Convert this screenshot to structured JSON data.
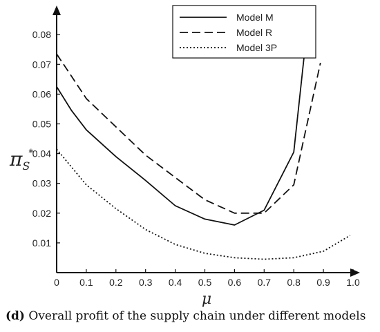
{
  "chart_data": {
    "type": "line",
    "xlabel": "μ",
    "ylabel_main": "π",
    "ylabel_sub": "S",
    "ylabel_sup": "*",
    "xlim": [
      0,
      1.0
    ],
    "ylim": [
      0,
      0.087
    ],
    "xticks": [
      "0",
      "0.1",
      "0.2",
      "0.3",
      "0.4",
      "0.5",
      "0.6",
      "0.7",
      "0.8",
      "0.9",
      "1.0"
    ],
    "yticks": [
      "0.01",
      "0.02",
      "0.03",
      "0.04",
      "0.05",
      "0.06",
      "0.07",
      "0.08"
    ],
    "grid": false,
    "legend_position": "top-right",
    "series": [
      {
        "name": "Model M",
        "style": "solid",
        "points": [
          [
            0,
            0.0625
          ],
          [
            0.05,
            0.0545
          ],
          [
            0.1,
            0.048
          ],
          [
            0.2,
            0.039
          ],
          [
            0.3,
            0.031
          ],
          [
            0.4,
            0.0225
          ],
          [
            0.5,
            0.018
          ],
          [
            0.6,
            0.016
          ],
          [
            0.7,
            0.021
          ],
          [
            0.8,
            0.0405
          ],
          [
            0.845,
            0.082
          ]
        ]
      },
      {
        "name": "Model R",
        "style": "dashed",
        "points": [
          [
            0,
            0.0735
          ],
          [
            0.05,
            0.066
          ],
          [
            0.1,
            0.0585
          ],
          [
            0.2,
            0.049
          ],
          [
            0.3,
            0.0395
          ],
          [
            0.4,
            0.032
          ],
          [
            0.5,
            0.0245
          ],
          [
            0.6,
            0.02
          ],
          [
            0.7,
            0.02
          ],
          [
            0.8,
            0.0295
          ],
          [
            0.89,
            0.0705
          ]
        ]
      },
      {
        "name": "Model 3P",
        "style": "dotted",
        "points": [
          [
            0,
            0.0415
          ],
          [
            0.05,
            0.0355
          ],
          [
            0.1,
            0.0295
          ],
          [
            0.2,
            0.0215
          ],
          [
            0.3,
            0.0145
          ],
          [
            0.4,
            0.0095
          ],
          [
            0.5,
            0.0065
          ],
          [
            0.6,
            0.005
          ],
          [
            0.7,
            0.0045
          ],
          [
            0.8,
            0.005
          ],
          [
            0.9,
            0.0072
          ],
          [
            0.99,
            0.0125
          ]
        ]
      }
    ]
  },
  "caption": {
    "label": "(d)",
    "text": " Overall profit of the supply chain under different models"
  }
}
